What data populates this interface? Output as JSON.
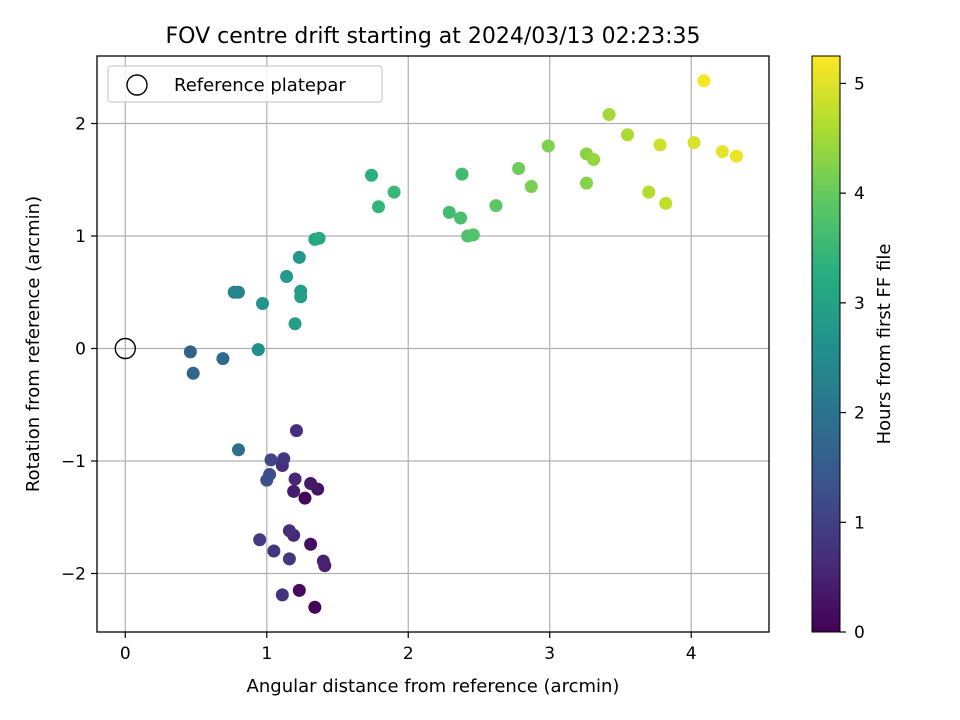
{
  "chart_data": {
    "type": "scatter",
    "title": "FOV centre drift starting at 2024/03/13 02:23:35",
    "xlabel": "Angular distance from reference (arcmin)",
    "ylabel": "Rotation from reference (arcmin)",
    "xlim": [
      -0.2,
      4.55
    ],
    "ylim": [
      -2.52,
      2.6
    ],
    "xticks": [
      0,
      1,
      2,
      3,
      4
    ],
    "yticks": [
      -2,
      -1,
      0,
      1,
      2
    ],
    "grid": true,
    "legend": {
      "placement": "top-left",
      "entries": [
        "Reference platepar"
      ]
    },
    "reference_point": {
      "x": 0,
      "y": 0,
      "label": "Reference platepar"
    },
    "colorbar": {
      "label": "Hours from first FF file",
      "colormap": "viridis",
      "range": [
        0,
        5.25
      ],
      "ticks": [
        0,
        1,
        2,
        3,
        4,
        5
      ]
    },
    "points": [
      {
        "x": 1.34,
        "y": -2.3,
        "c": 0.05
      },
      {
        "x": 1.23,
        "y": -2.15,
        "c": 0.15
      },
      {
        "x": 1.27,
        "y": -1.33,
        "c": 0.1
      },
      {
        "x": 1.31,
        "y": -1.74,
        "c": 0.2
      },
      {
        "x": 1.36,
        "y": -1.25,
        "c": 0.3
      },
      {
        "x": 1.31,
        "y": -1.2,
        "c": 0.35
      },
      {
        "x": 1.19,
        "y": -1.27,
        "c": 0.4
      },
      {
        "x": 1.41,
        "y": -1.93,
        "c": 0.45
      },
      {
        "x": 1.4,
        "y": -1.89,
        "c": 0.5
      },
      {
        "x": 1.19,
        "y": -1.66,
        "c": 0.55
      },
      {
        "x": 1.2,
        "y": -1.16,
        "c": 0.6
      },
      {
        "x": 1.11,
        "y": -1.04,
        "c": 0.65
      },
      {
        "x": 1.16,
        "y": -1.62,
        "c": 0.7
      },
      {
        "x": 1.21,
        "y": -0.73,
        "c": 0.7
      },
      {
        "x": 1.11,
        "y": -2.19,
        "c": 0.75
      },
      {
        "x": 1.05,
        "y": -1.8,
        "c": 0.8
      },
      {
        "x": 1.16,
        "y": -1.87,
        "c": 0.85
      },
      {
        "x": 1.12,
        "y": -0.98,
        "c": 0.85
      },
      {
        "x": 0.95,
        "y": -1.7,
        "c": 0.9
      },
      {
        "x": 1.03,
        "y": -0.99,
        "c": 1.1
      },
      {
        "x": 1.02,
        "y": -1.12,
        "c": 1.2
      },
      {
        "x": 1.0,
        "y": -1.17,
        "c": 1.3
      },
      {
        "x": 0.46,
        "y": -0.03,
        "c": 1.6
      },
      {
        "x": 0.48,
        "y": -0.22,
        "c": 1.7
      },
      {
        "x": 0.69,
        "y": -0.09,
        "c": 1.8
      },
      {
        "x": 0.8,
        "y": -0.9,
        "c": 1.9
      },
      {
        "x": 0.77,
        "y": 0.5,
        "c": 2.3
      },
      {
        "x": 0.8,
        "y": 0.5,
        "c": 2.35
      },
      {
        "x": 0.94,
        "y": -0.01,
        "c": 2.6
      },
      {
        "x": 0.97,
        "y": 0.4,
        "c": 2.7
      },
      {
        "x": 1.23,
        "y": 0.81,
        "c": 2.75
      },
      {
        "x": 1.14,
        "y": 0.64,
        "c": 2.85
      },
      {
        "x": 1.24,
        "y": 0.51,
        "c": 2.9
      },
      {
        "x": 1.24,
        "y": 0.46,
        "c": 2.95
      },
      {
        "x": 1.2,
        "y": 0.22,
        "c": 2.95
      },
      {
        "x": 1.34,
        "y": 0.97,
        "c": 3.1
      },
      {
        "x": 1.37,
        "y": 0.98,
        "c": 3.2
      },
      {
        "x": 1.74,
        "y": 1.54,
        "c": 3.3
      },
      {
        "x": 1.79,
        "y": 1.26,
        "c": 3.4
      },
      {
        "x": 1.9,
        "y": 1.39,
        "c": 3.5
      },
      {
        "x": 2.38,
        "y": 1.55,
        "c": 3.6
      },
      {
        "x": 2.29,
        "y": 1.21,
        "c": 3.6
      },
      {
        "x": 2.37,
        "y": 1.16,
        "c": 3.7
      },
      {
        "x": 2.42,
        "y": 1.0,
        "c": 3.75
      },
      {
        "x": 2.46,
        "y": 1.01,
        "c": 3.8
      },
      {
        "x": 2.62,
        "y": 1.27,
        "c": 3.9
      },
      {
        "x": 2.78,
        "y": 1.6,
        "c": 4.05
      },
      {
        "x": 2.87,
        "y": 1.44,
        "c": 4.15
      },
      {
        "x": 2.99,
        "y": 1.8,
        "c": 4.2
      },
      {
        "x": 3.26,
        "y": 1.47,
        "c": 4.25
      },
      {
        "x": 3.26,
        "y": 1.73,
        "c": 4.3
      },
      {
        "x": 3.31,
        "y": 1.68,
        "c": 4.4
      },
      {
        "x": 3.42,
        "y": 2.08,
        "c": 4.5
      },
      {
        "x": 3.55,
        "y": 1.9,
        "c": 4.55
      },
      {
        "x": 3.7,
        "y": 1.39,
        "c": 4.65
      },
      {
        "x": 3.82,
        "y": 1.29,
        "c": 4.75
      },
      {
        "x": 3.78,
        "y": 1.81,
        "c": 4.85
      },
      {
        "x": 4.02,
        "y": 1.83,
        "c": 4.95
      },
      {
        "x": 4.22,
        "y": 1.75,
        "c": 5.05
      },
      {
        "x": 4.32,
        "y": 1.71,
        "c": 5.1
      },
      {
        "x": 4.09,
        "y": 2.38,
        "c": 5.2
      }
    ]
  }
}
